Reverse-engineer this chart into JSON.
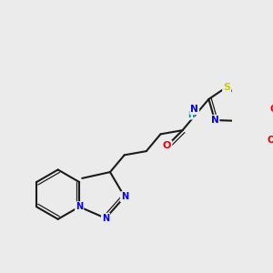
{
  "bg_color": "#ebebeb",
  "bond_color": "#1a1a1a",
  "atom_colors": {
    "N": "#0000ee",
    "O": "#ee0000",
    "S": "#cccc00",
    "C": "#1a1a1a",
    "H": "#008090"
  },
  "lw": 1.5,
  "lw2": 0.9
}
